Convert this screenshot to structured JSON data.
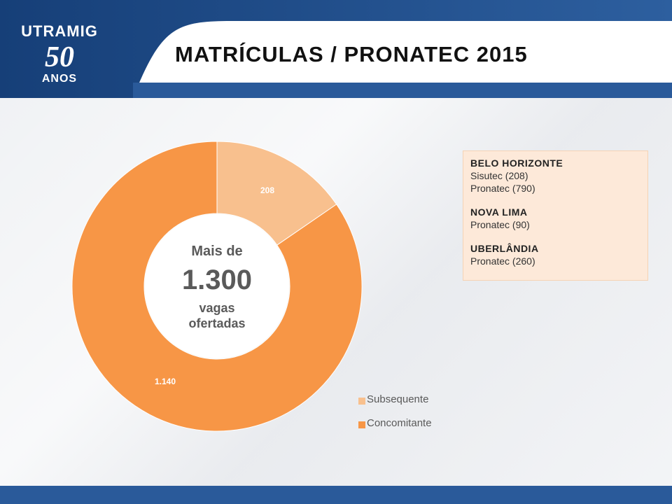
{
  "header": {
    "title": "MATRÍCULAS / PRONATEC 2015",
    "logo": {
      "brand": "UTRAMIG",
      "years": "50",
      "anos": "ANOS"
    }
  },
  "center": {
    "line1": "Mais de",
    "line2": "1.300",
    "line3": "vagas",
    "line4": "ofertadas"
  },
  "info_box": {
    "sections": [
      {
        "city": "BELO HORIZONTE",
        "lines": [
          "Sisutec (208)",
          "Pronatec (790)"
        ]
      },
      {
        "city": "NOVA LIMA",
        "lines": [
          "Pronatec (90)"
        ]
      },
      {
        "city": "UBERLÂNDIA",
        "lines": [
          "Pronatec (260)"
        ]
      }
    ]
  },
  "colors": {
    "subsequente": "#f8c08e",
    "concomitante": "#f79646",
    "header_blue": "#1f4e8c",
    "footer_blue": "#2a5a9a"
  },
  "chart_data": {
    "type": "pie",
    "donut": true,
    "categories": [
      "Subsequente",
      "Concomitante"
    ],
    "values": [
      208,
      1140
    ],
    "data_labels": [
      "208",
      "1.140"
    ],
    "legend": "bottom-right"
  }
}
